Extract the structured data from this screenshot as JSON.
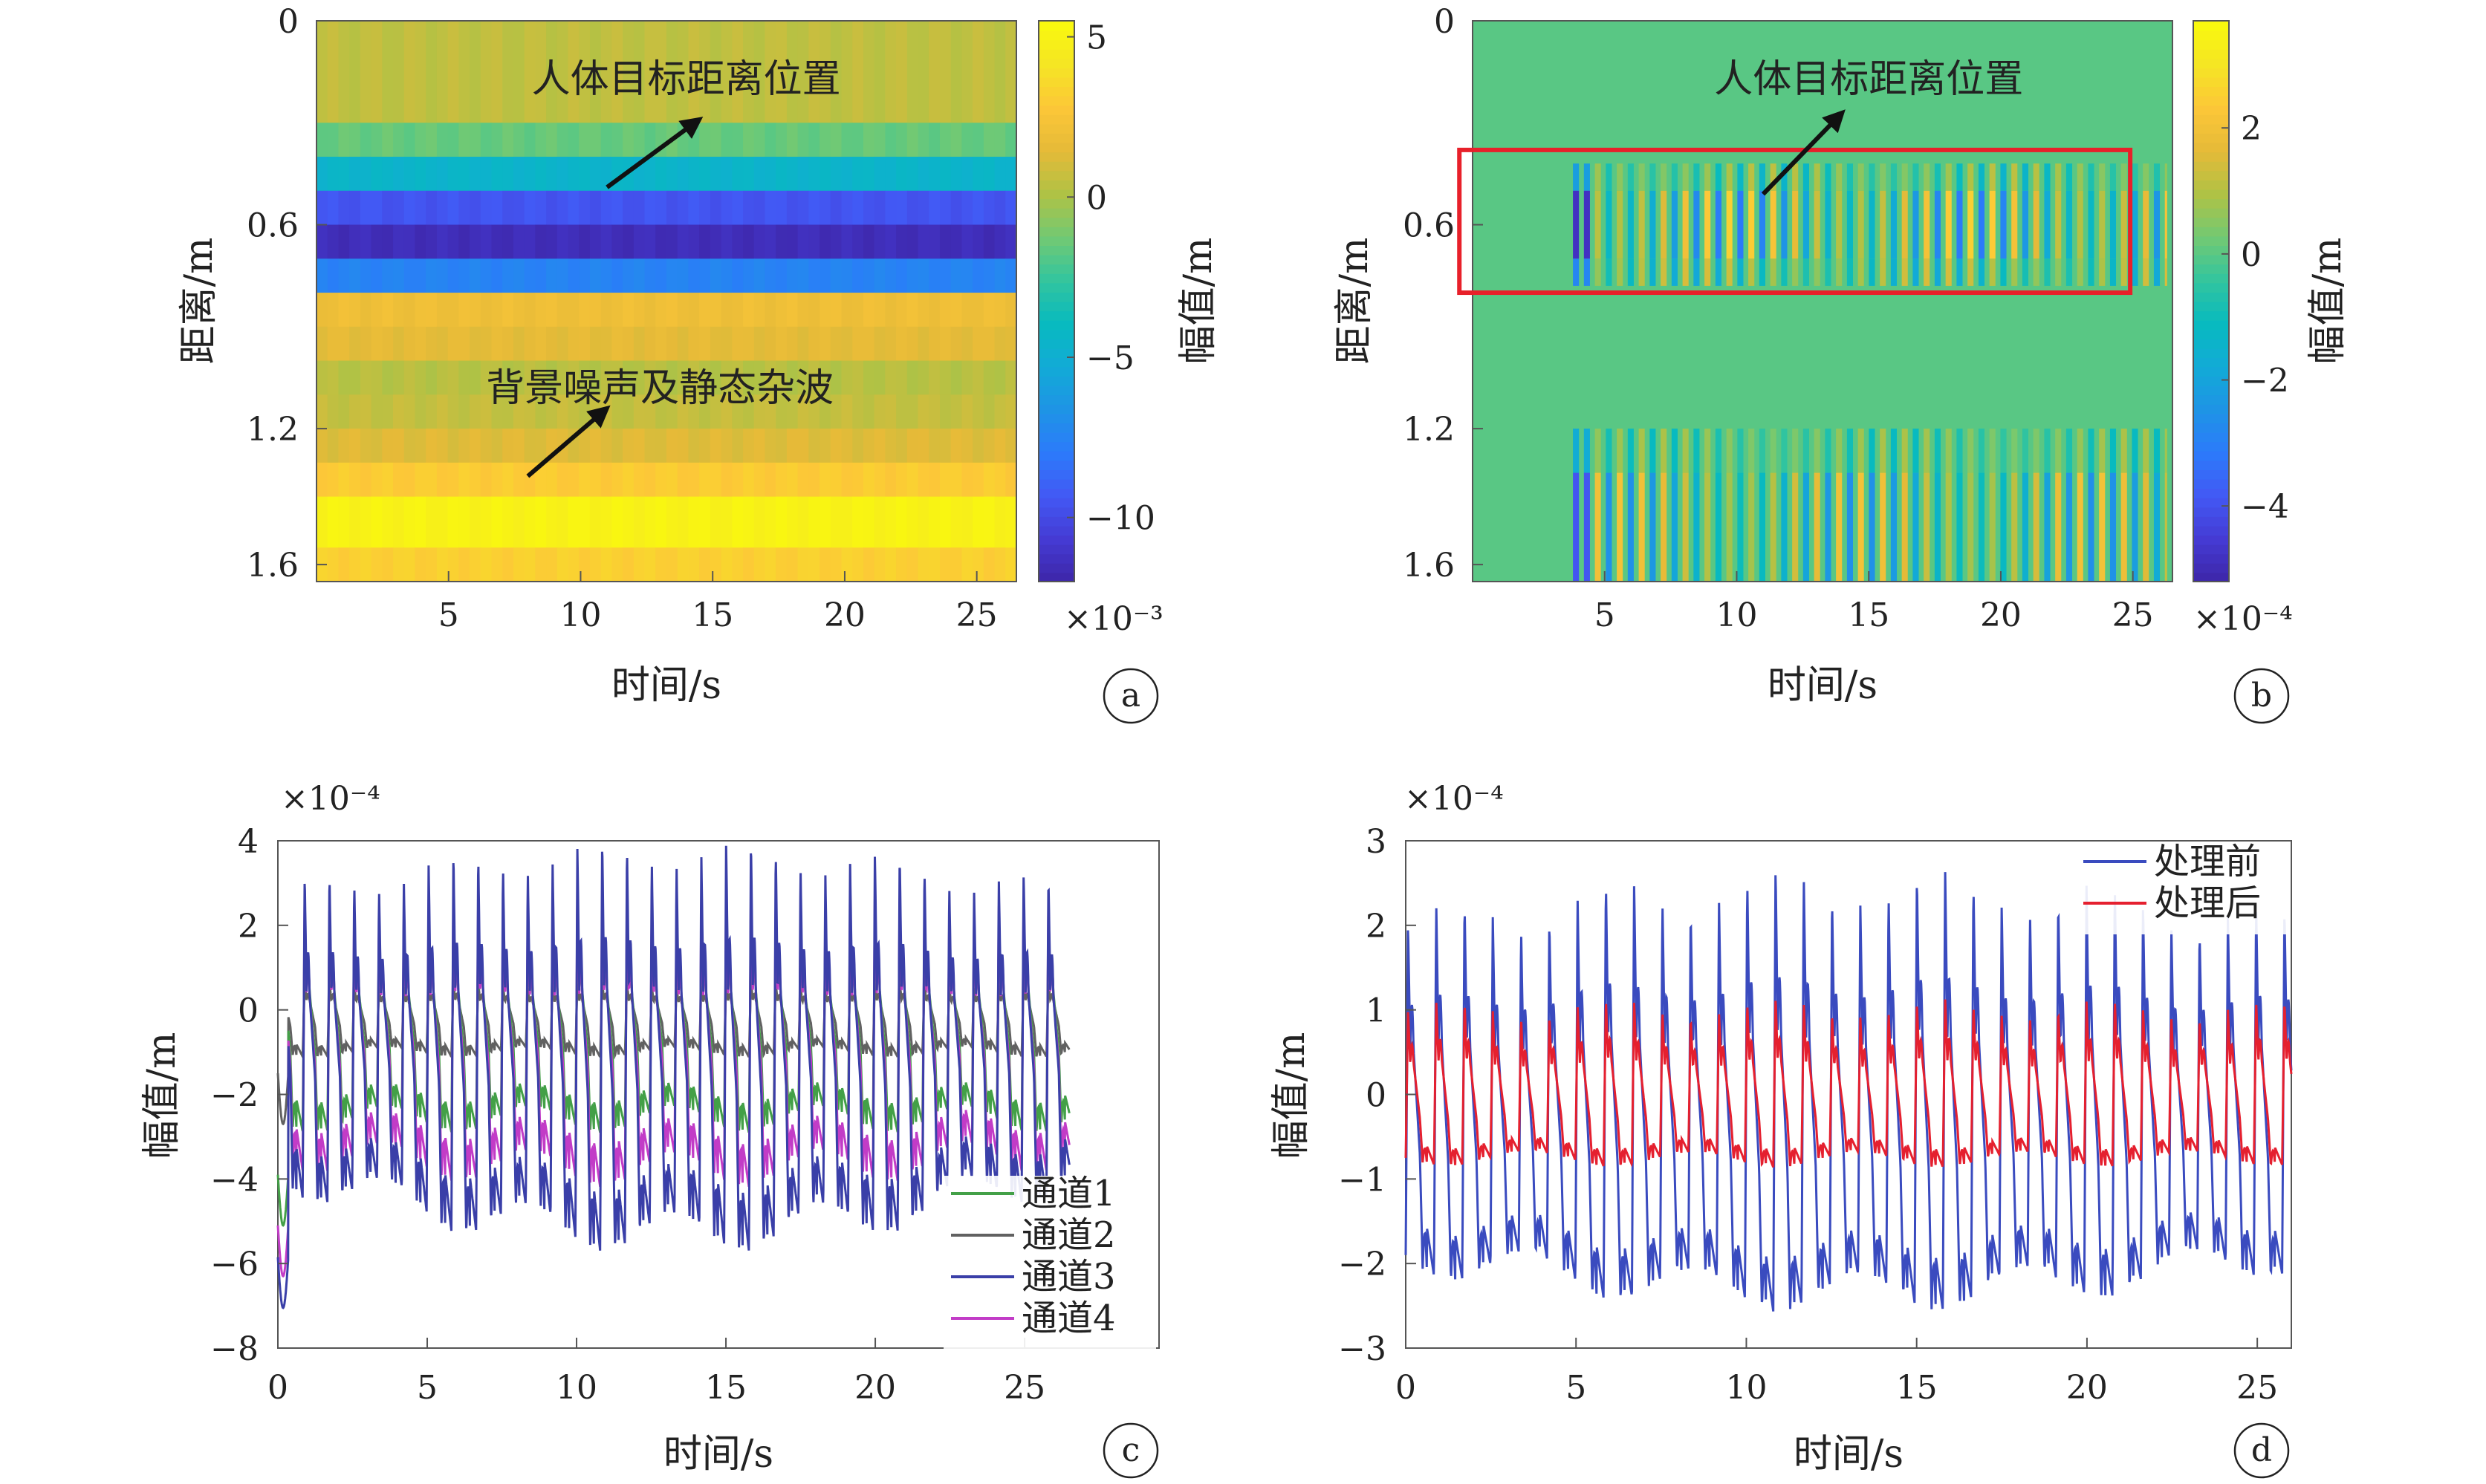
{
  "chart_data": [
    {
      "id": "a",
      "type": "heatmap",
      "panel_label": "a",
      "xlabel": "时间/s",
      "ylabel": "距离/m",
      "colorbar_label": "幅值/m",
      "colorbar_exponent": "×10⁻³",
      "xlim": [
        0,
        26.5
      ],
      "ylim": [
        0,
        1.65
      ],
      "y_reversed": true,
      "xticks": [
        5,
        10,
        15,
        20,
        25
      ],
      "yticks": [
        0,
        0.6,
        1.2,
        1.6
      ],
      "clim": [
        -12,
        5.5
      ],
      "colorbar_ticks": [
        5,
        0,
        -5,
        -10
      ],
      "colormap": "parula",
      "rows": [
        {
          "y0": 0.0,
          "y1": 0.3,
          "value": 0.5
        },
        {
          "y0": 0.3,
          "y1": 0.4,
          "value": -1.5
        },
        {
          "y0": 0.4,
          "y1": 0.5,
          "value": -4.5
        },
        {
          "y0": 0.5,
          "y1": 0.6,
          "value": -9.5
        },
        {
          "y0": 0.6,
          "y1": 0.7,
          "value": -11.5
        },
        {
          "y0": 0.7,
          "y1": 0.8,
          "value": -7.5
        },
        {
          "y0": 0.8,
          "y1": 0.9,
          "value": 2.0
        },
        {
          "y0": 0.9,
          "y1": 1.0,
          "value": 1.5
        },
        {
          "y0": 1.0,
          "y1": 1.1,
          "value": 0.3
        },
        {
          "y0": 1.1,
          "y1": 1.2,
          "value": 0.6
        },
        {
          "y0": 1.2,
          "y1": 1.3,
          "value": 1.3
        },
        {
          "y0": 1.3,
          "y1": 1.4,
          "value": 3.0
        },
        {
          "y0": 1.4,
          "y1": 1.55,
          "value": 5.0
        },
        {
          "y0": 1.55,
          "y1": 1.65,
          "value": 3.2
        }
      ],
      "annotations": [
        {
          "text": "人体目标距离位置",
          "x": 14,
          "y": 0.17,
          "arrow_from": [
            11,
            0.49
          ],
          "arrow_to": [
            14.5,
            0.29
          ]
        },
        {
          "text": "背景噪声及静态杂波",
          "x": 13,
          "y": 1.08,
          "arrow_from": [
            8,
            1.34
          ],
          "arrow_to": [
            11,
            1.14
          ]
        }
      ]
    },
    {
      "id": "b",
      "type": "heatmap",
      "panel_label": "b",
      "xlabel": "时间/s",
      "ylabel": "距离/m",
      "colorbar_label": "幅值/m",
      "colorbar_exponent": "×10⁻⁴",
      "xlim": [
        0,
        26.5
      ],
      "ylim": [
        0,
        1.65
      ],
      "y_reversed": true,
      "xticks": [
        5,
        10,
        15,
        20,
        25
      ],
      "yticks": [
        0,
        0.6,
        1.2,
        1.6
      ],
      "clim": [
        -5.2,
        3.7
      ],
      "colorbar_ticks": [
        2,
        0,
        -2,
        -4
      ],
      "colormap": "parula",
      "background_value": 0,
      "stripes_start": 3.8,
      "stripes_end": 26.3,
      "stripe_period": 0.83,
      "bands": [
        {
          "y0": 0.42,
          "y1": 0.5,
          "amplitude": 1.0
        },
        {
          "y0": 0.5,
          "y1": 0.7,
          "amplitude": 2.2
        },
        {
          "y0": 0.7,
          "y1": 0.78,
          "amplitude": 1.3
        },
        {
          "y0": 1.2,
          "y1": 1.33,
          "amplitude": 0.8
        },
        {
          "y0": 1.33,
          "y1": 1.65,
          "amplitude": 1.8
        }
      ],
      "highlight_box": {
        "x0": -0.5,
        "x1": 24.9,
        "y0": 0.38,
        "y1": 0.8,
        "color": "#e8202a"
      },
      "annotations": [
        {
          "text": "人体目标距离位置",
          "x": 15,
          "y": 0.17,
          "arrow_from": [
            11,
            0.51
          ],
          "arrow_to": [
            14,
            0.27
          ]
        }
      ]
    },
    {
      "id": "c",
      "type": "line",
      "panel_label": "c",
      "xlabel": "时间/s",
      "ylabel": "幅值/m",
      "y_exponent": "×10⁻⁴",
      "xlim": [
        0,
        29.5
      ],
      "ylim": [
        -8,
        4
      ],
      "xticks": [
        0,
        5,
        10,
        15,
        20,
        25
      ],
      "yticks": [
        4,
        2,
        0,
        -2,
        -4,
        -6,
        -8
      ],
      "legend_placement": "bottom-right",
      "period": 0.83,
      "t_end": 26.5,
      "series": [
        {
          "name": "通道1",
          "color": "#43a047",
          "high": 1.9,
          "low": -2.6,
          "shoulder": 0.4,
          "grow": 0.0,
          "width": 3
        },
        {
          "name": "通道2",
          "color": "#616161",
          "high": 0.6,
          "low": -1.0,
          "shoulder": 0.2,
          "grow": 0.0,
          "width": 3
        },
        {
          "name": "通道3",
          "color": "#3a3fa8",
          "high": 2.8,
          "low": -3.9,
          "shoulder": 0.3,
          "grow": 0.6,
          "width": 3
        },
        {
          "name": "通道4",
          "color": "#c23cc7",
          "high": 2.4,
          "low": -3.4,
          "shoulder": 0.3,
          "grow": 0.2,
          "width": 3
        }
      ]
    },
    {
      "id": "d",
      "type": "line",
      "panel_label": "d",
      "xlabel": "时间/s",
      "ylabel": "幅值/m",
      "y_exponent": "×10⁻⁴",
      "xlim": [
        0,
        26
      ],
      "ylim": [
        -3,
        3
      ],
      "xticks": [
        0,
        5,
        10,
        15,
        20,
        25
      ],
      "yticks": [
        3,
        2,
        1,
        0,
        -1,
        -2,
        -3
      ],
      "legend_placement": "top-right",
      "period": 0.83,
      "t_end": 26,
      "series": [
        {
          "name": "处理前",
          "color": "#3a4bbf",
          "high": 2.0,
          "low": -1.9,
          "shoulder": 0.5,
          "grow": 0.4,
          "width": 3
        },
        {
          "name": "处理后",
          "color": "#e5202f",
          "high": 1.0,
          "low": -0.75,
          "shoulder": 0.35,
          "grow": 0.05,
          "width": 3
        }
      ]
    }
  ]
}
